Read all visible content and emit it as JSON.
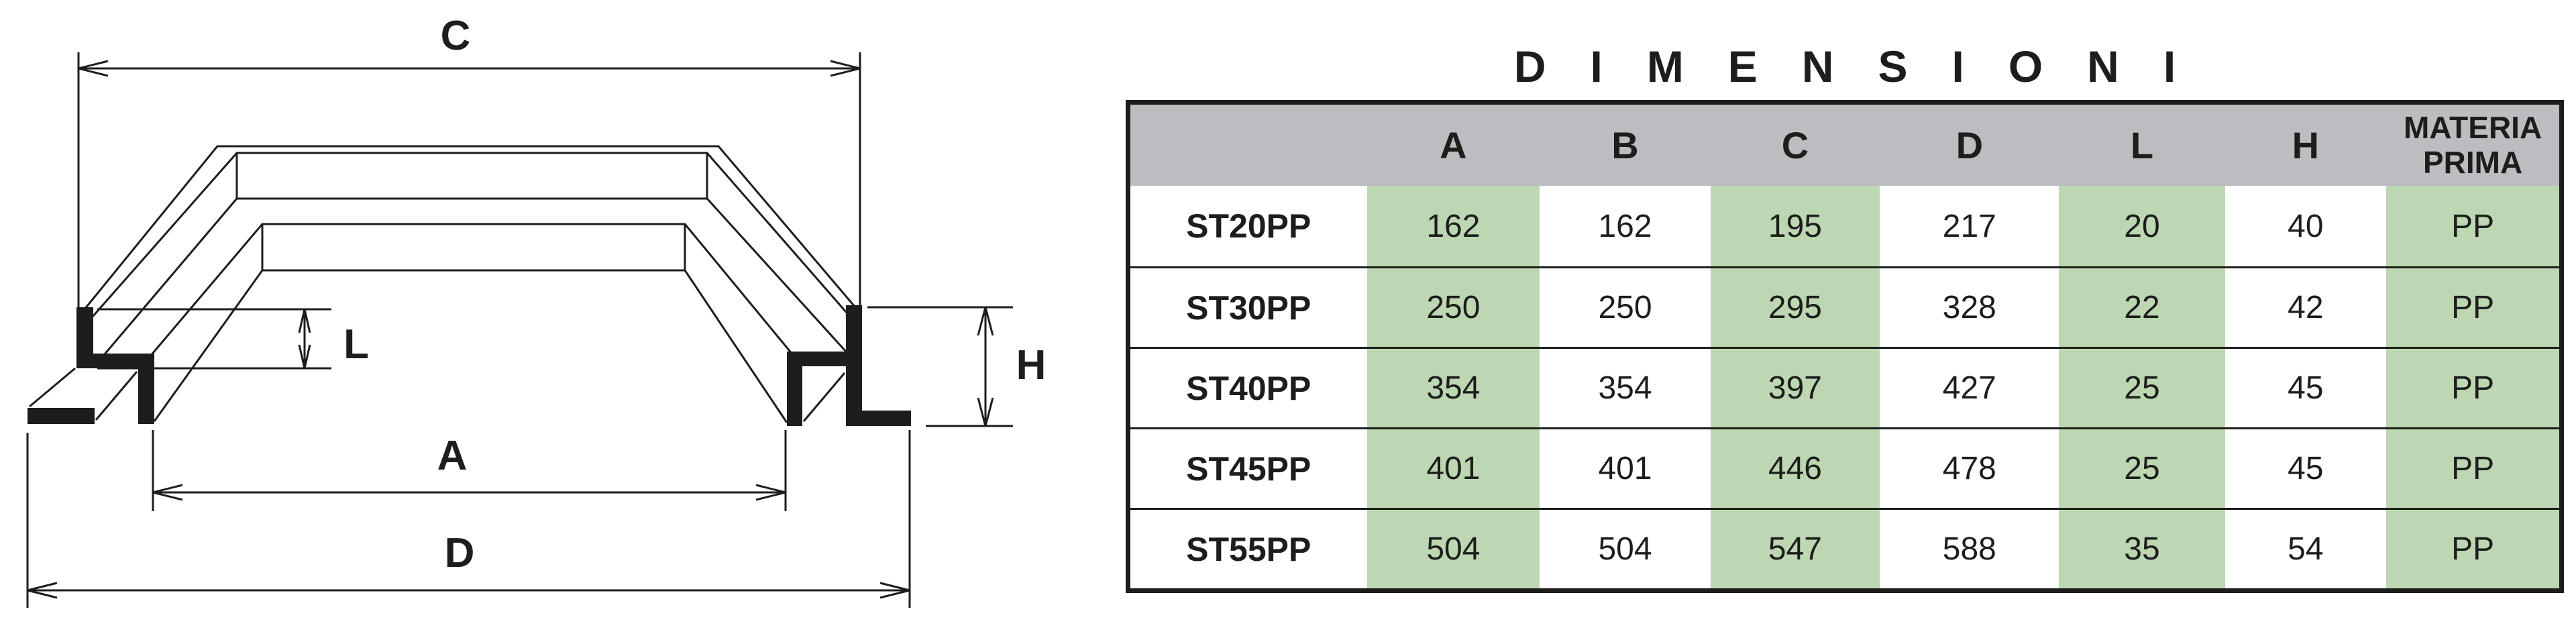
{
  "diagram": {
    "description": "3D technical drawing of trapezoidal bridge profile with hooked feet",
    "labels": {
      "c": "C",
      "l": "L",
      "a": "A",
      "d": "D",
      "h": "H"
    }
  },
  "table": {
    "title": "DIMENSIONI",
    "columns": [
      "A",
      "B",
      "C",
      "D",
      "L",
      "H",
      "MATERIA PRIMA"
    ],
    "green_columns": [
      "A",
      "C",
      "L",
      "MATERIA PRIMA"
    ],
    "rows": [
      {
        "label": "ST20PP",
        "values": [
          "162",
          "162",
          "195",
          "217",
          "20",
          "40",
          "PP"
        ]
      },
      {
        "label": "ST30PP",
        "values": [
          "250",
          "250",
          "295",
          "328",
          "22",
          "42",
          "PP"
        ]
      },
      {
        "label": "ST40PP",
        "values": [
          "354",
          "354",
          "397",
          "427",
          "25",
          "45",
          "PP"
        ]
      },
      {
        "label": "ST45PP",
        "values": [
          "401",
          "401",
          "446",
          "478",
          "25",
          "45",
          "PP"
        ]
      },
      {
        "label": "ST55PP",
        "values": [
          "504",
          "504",
          "547",
          "588",
          "35",
          "54",
          "PP"
        ]
      }
    ]
  },
  "colors": {
    "ink": "#1d1d1b",
    "header_gray": "#bdbdc1",
    "cell_green": "#bcd7b2",
    "background": "#ffffff"
  }
}
